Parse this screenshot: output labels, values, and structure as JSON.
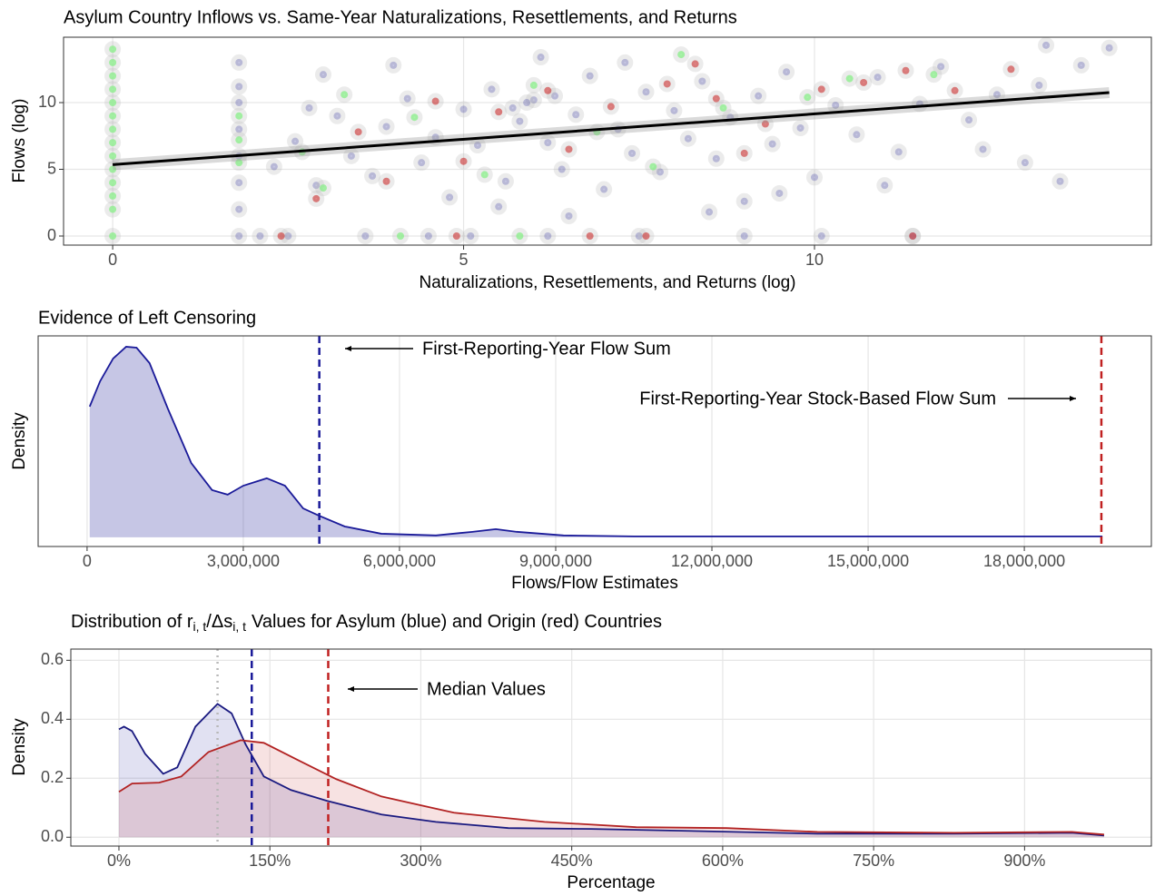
{
  "chart_data": [
    {
      "type": "scatter",
      "title": "Asylum Country Inflows vs. Same-Year Naturalizations, Resettlements, and Returns",
      "xlabel": "Naturalizations, Resettlements, and Returns (log)",
      "ylabel": "Flows (log)",
      "xlim": [
        -0.7,
        14.8
      ],
      "ylim": [
        -0.68,
        14.9
      ],
      "xticks": [
        0,
        5,
        10
      ],
      "yticks": [
        0,
        5,
        10
      ],
      "grid": true,
      "series": [
        {
          "color": "rgba(30,30,150,0.25)",
          "x": [
            1.8,
            1.8,
            1.8,
            1.8,
            1.8,
            1.8,
            1.8,
            1.8,
            2.1,
            2.5,
            3.6,
            4.5,
            5.1,
            6.2,
            7.5,
            9.0,
            10.1,
            11.4,
            2.3,
            2.6,
            2.9,
            3.2,
            3.4,
            3.7,
            3.9,
            4.2,
            4.4,
            4.6,
            4.8,
            5.0,
            5.2,
            5.4,
            5.6,
            5.8,
            6.0,
            6.2,
            6.4,
            6.6,
            6.8,
            7.0,
            7.2,
            7.4,
            7.6,
            7.8,
            8.0,
            8.2,
            8.4,
            8.6,
            8.8,
            9.0,
            9.2,
            9.4,
            9.6,
            9.8,
            10.0,
            10.3,
            10.6,
            10.9,
            11.2,
            11.5,
            11.8,
            12.2,
            12.6,
            13.0,
            13.2,
            13.5,
            13.8,
            14.2,
            13.3,
            12.4,
            11.0,
            9.5,
            8.5,
            6.5,
            5.5,
            3.0,
            4.0,
            6.1,
            7.3,
            2.8,
            5.9,
            6.3,
            5.7
          ],
          "values": [
            0,
            2,
            4,
            6,
            8,
            10,
            11.2,
            13,
            0,
            0,
            0,
            0,
            0,
            0,
            0,
            0,
            0,
            0,
            5.2,
            7.1,
            3.8,
            9.0,
            6.0,
            4.5,
            8.2,
            10.3,
            5.5,
            7.4,
            2.9,
            9.5,
            6.8,
            11.0,
            4.1,
            8.6,
            10.2,
            7.0,
            5.0,
            9.1,
            12.0,
            3.5,
            8.0,
            6.2,
            10.8,
            4.8,
            9.4,
            7.3,
            11.6,
            5.8,
            8.9,
            2.6,
            10.5,
            6.9,
            12.3,
            8.1,
            4.4,
            9.8,
            7.6,
            11.9,
            6.3,
            9.9,
            12.7,
            8.7,
            10.6,
            5.5,
            11.3,
            4.1,
            12.8,
            14.1,
            14.3,
            6.5,
            3.8,
            3.2,
            1.8,
            1.5,
            2.2,
            12.1,
            12.8,
            13.4,
            13.0,
            9.6,
            10.0,
            10.5,
            9.6
          ]
        },
        {
          "color": "rgba(200,30,30,0.55)",
          "x": [
            2.9,
            3.5,
            4.6,
            5.5,
            6.2,
            6.5,
            7.1,
            7.9,
            8.6,
            9.3,
            10.1,
            10.7,
            11.3,
            12.0,
            5.0,
            3.9,
            2.4,
            4.9,
            6.8,
            7.6,
            11.4,
            8.3,
            12.8,
            9.0
          ],
          "values": [
            2.8,
            7.8,
            10.1,
            9.3,
            10.9,
            6.5,
            9.7,
            11.4,
            10.3,
            8.4,
            11.0,
            11.5,
            12.4,
            10.9,
            5.6,
            4.1,
            0,
            0,
            0,
            0,
            0,
            12.9,
            12.5,
            6.2
          ]
        },
        {
          "color": "rgba(130,240,130,0.7)",
          "x": [
            0,
            0,
            0,
            0,
            0,
            0,
            0,
            0,
            0,
            0,
            0,
            0,
            0,
            0,
            1.8,
            1.8,
            1.8,
            2.7,
            3.3,
            4.3,
            5.3,
            6.0,
            6.9,
            7.7,
            8.7,
            9.9,
            10.5,
            11.7,
            3.0,
            8.1,
            4.1,
            5.8
          ],
          "values": [
            0,
            2,
            3,
            4,
            5,
            6,
            7,
            8,
            9,
            10,
            11,
            12,
            13,
            14,
            5.5,
            7.2,
            9.0,
            6.3,
            10.6,
            8.9,
            4.6,
            11.3,
            7.8,
            5.2,
            9.6,
            10.4,
            11.8,
            12.1,
            3.6,
            13.6,
            0,
            0
          ]
        }
      ],
      "fit_line": {
        "color": "#000000",
        "x": [
          0,
          14.2
        ],
        "values": [
          5.35,
          10.75
        ]
      }
    },
    {
      "type": "area",
      "title": "Evidence of Left Censoring",
      "xlabel": "Flows/Flow Estimates",
      "ylabel": "Density",
      "xlim": [
        -940000,
        20440000
      ],
      "ylim": [
        -0.048,
        1.057
      ],
      "xticks": [
        0,
        {
          "value": 3000000,
          "label": "3,000,000"
        },
        {
          "value": 6000000,
          "label": "6,000,000"
        },
        {
          "value": 9000000,
          "label": "9,000,000"
        },
        {
          "value": 12000000,
          "label": "12,000,000"
        },
        {
          "value": 15000000,
          "label": "15,000,000"
        },
        {
          "value": 18000000,
          "label": "18,000,000"
        }
      ],
      "grid": true,
      "series": [
        {
          "color": "#1a1a99",
          "fill": "rgba(26,26,153,0.25)",
          "x": [
            50000,
            250000,
            500000,
            750000,
            950000,
            1200000,
            1550000,
            2000000,
            2400000,
            2700000,
            3000000,
            3450000,
            3800000,
            4150000,
            4450000,
            4950000,
            5650000,
            6700000,
            7400000,
            7850000,
            8250000,
            9150000,
            10500000,
            14000000,
            19500000
          ],
          "values": [
            0.686,
            0.819,
            0.938,
            1.0,
            0.995,
            0.914,
            0.676,
            0.39,
            0.248,
            0.224,
            0.271,
            0.31,
            0.271,
            0.152,
            0.114,
            0.057,
            0.019,
            0.01,
            0.029,
            0.043,
            0.029,
            0.01,
            0.005,
            0.005,
            0.005
          ]
        }
      ],
      "vlines": [
        {
          "value": 4460000,
          "color": "#1a1a99",
          "style": "dashed"
        },
        {
          "value": 19480000,
          "color": "#c02020",
          "style": "dashed"
        }
      ],
      "annotations": [
        {
          "text": "First-Reporting-Year Flow Sum",
          "color": "#1a1a99"
        },
        {
          "text": "First-Reporting-Year Stock-Based Flow Sum",
          "color": "#c02020"
        }
      ]
    },
    {
      "type": "area",
      "title_parts": [
        "Distribution of r",
        "i, t",
        "/Δs",
        "i, t",
        "Values for Asylum (blue) and Origin (red) Countries"
      ],
      "xlabel": "Percentage",
      "ylabel": "Density",
      "xlim": [
        -47.8,
        1026
      ],
      "ylim": [
        -0.03,
        0.638
      ],
      "xticks": [
        {
          "value": 0,
          "label": "0%"
        },
        {
          "value": 150,
          "label": "150%"
        },
        {
          "value": 300,
          "label": "300%"
        },
        {
          "value": 450,
          "label": "450%"
        },
        {
          "value": 600,
          "label": "600%"
        },
        {
          "value": 750,
          "label": "750%"
        },
        {
          "value": 900,
          "label": "900%"
        }
      ],
      "yticks": [
        {
          "value": 0,
          "label": "0.0"
        },
        0.2,
        0.4,
        0.6
      ],
      "grid": true,
      "series": [
        {
          "color": "#1a1a80",
          "fill": "rgba(26,26,153,0.13)",
          "x": [
            0,
            5,
            13,
            26,
            44,
            58,
            76,
            98,
            112,
            126,
            144,
            171,
            207,
            261,
            315,
            387,
            469,
            559,
            694,
            830,
            947,
            979
          ],
          "values": [
            0.366,
            0.375,
            0.36,
            0.283,
            0.215,
            0.237,
            0.375,
            0.452,
            0.42,
            0.314,
            0.206,
            0.16,
            0.123,
            0.077,
            0.052,
            0.031,
            0.028,
            0.022,
            0.012,
            0.012,
            0.015,
            0.006
          ]
        },
        {
          "color": "#b22222",
          "fill": "rgba(192,32,32,0.13)",
          "x": [
            0,
            13,
            40,
            62,
            89,
            121,
            144,
            180,
            216,
            261,
            333,
            423,
            514,
            604,
            694,
            830,
            947,
            979
          ],
          "values": [
            0.154,
            0.182,
            0.185,
            0.206,
            0.289,
            0.329,
            0.32,
            0.258,
            0.197,
            0.138,
            0.083,
            0.052,
            0.034,
            0.031,
            0.018,
            0.015,
            0.018,
            0.009
          ]
        }
      ],
      "vlines": [
        {
          "value": 98,
          "color": "#b8b8b8",
          "style": "dotted"
        },
        {
          "value": 132,
          "color": "#1a1a99",
          "style": "dashed"
        },
        {
          "value": 208,
          "color": "#c02020",
          "style": "dashed"
        }
      ],
      "annotations": [
        {
          "text": "Median Values",
          "color": "#000000"
        }
      ]
    }
  ]
}
